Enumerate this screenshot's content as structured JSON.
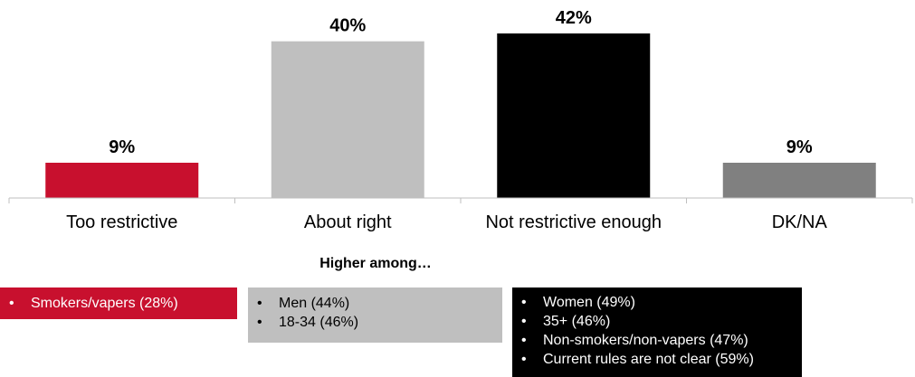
{
  "chart_data": {
    "type": "bar",
    "categories": [
      "Too restrictive",
      "About right",
      "Not restrictive enough",
      "DK/NA"
    ],
    "values": [
      9,
      40,
      42,
      9
    ],
    "data_labels": [
      "9%",
      "40%",
      "42%",
      "9%"
    ],
    "colors": [
      "#c8102e",
      "#bfbfbf",
      "#000000",
      "#808080"
    ],
    "ylim": [
      0,
      42
    ],
    "grid": false,
    "legend": "none"
  },
  "subtitle": "Higher among…",
  "callouts": [
    {
      "color": "#c8102e",
      "items": [
        "Smokers/vapers (28%)"
      ]
    },
    {
      "color": "#bfbfbf",
      "items": [
        "Men (44%)",
        "18-34 (46%)"
      ]
    },
    {
      "color": "#000000",
      "items": [
        "Women (49%)",
        "35+ (46%)",
        "Non-smokers/non-vapers (47%)",
        "Current rules are not clear (59%)"
      ]
    }
  ],
  "bullet": "•"
}
